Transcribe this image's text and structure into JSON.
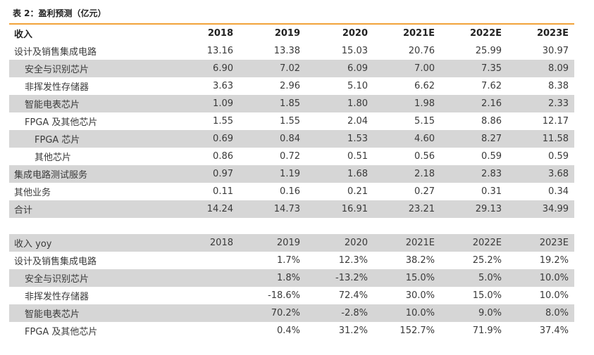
{
  "title": "表 2：盈利预测（亿元）",
  "table1": {
    "header": {
      "label": "收入",
      "years": [
        "2018",
        "2019",
        "2020",
        "2021E",
        "2022E",
        "2023E"
      ]
    },
    "rows": [
      {
        "label": "设计及销售集成电路",
        "indent": 0,
        "gray": false,
        "values": [
          "13.16",
          "13.38",
          "15.03",
          "20.76",
          "25.99",
          "30.97"
        ]
      },
      {
        "label": "安全与识别芯片",
        "indent": 1,
        "gray": true,
        "values": [
          "6.90",
          "7.02",
          "6.09",
          "7.00",
          "7.35",
          "8.09"
        ]
      },
      {
        "label": "非挥发性存储器",
        "indent": 1,
        "gray": false,
        "values": [
          "3.63",
          "2.96",
          "5.10",
          "6.62",
          "7.62",
          "8.38"
        ]
      },
      {
        "label": "智能电表芯片",
        "indent": 1,
        "gray": true,
        "values": [
          "1.09",
          "1.85",
          "1.80",
          "1.98",
          "2.16",
          "2.33"
        ]
      },
      {
        "label": "FPGA 及其他芯片",
        "indent": 1,
        "gray": false,
        "values": [
          "1.55",
          "1.55",
          "2.04",
          "5.15",
          "8.86",
          "12.17"
        ]
      },
      {
        "label": "FPGA 芯片",
        "indent": 2,
        "gray": true,
        "values": [
          "0.69",
          "0.84",
          "1.53",
          "4.60",
          "8.27",
          "11.58"
        ]
      },
      {
        "label": "其他芯片",
        "indent": 2,
        "gray": false,
        "values": [
          "0.86",
          "0.72",
          "0.51",
          "0.56",
          "0.59",
          "0.59"
        ]
      },
      {
        "label": "集成电路测试服务",
        "indent": 0,
        "gray": true,
        "values": [
          "0.97",
          "1.19",
          "1.68",
          "2.18",
          "2.83",
          "3.68"
        ]
      },
      {
        "label": "其他业务",
        "indent": 0,
        "gray": false,
        "values": [
          "0.11",
          "0.16",
          "0.21",
          "0.27",
          "0.31",
          "0.34"
        ]
      },
      {
        "label": "合计",
        "indent": 0,
        "gray": true,
        "values": [
          "14.24",
          "14.73",
          "16.91",
          "23.21",
          "29.13",
          "34.99"
        ]
      }
    ]
  },
  "table2": {
    "header": {
      "label": "收入 yoy",
      "years": [
        "2018",
        "2019",
        "2020",
        "2021E",
        "2022E",
        "2023E"
      ]
    },
    "rows": [
      {
        "label": "设计及销售集成电路",
        "indent": 0,
        "gray": false,
        "values": [
          "",
          "1.7%",
          "12.3%",
          "38.2%",
          "25.2%",
          "19.2%"
        ]
      },
      {
        "label": "安全与识别芯片",
        "indent": 1,
        "gray": true,
        "values": [
          "",
          "1.8%",
          "-13.2%",
          "15.0%",
          "5.0%",
          "10.0%"
        ]
      },
      {
        "label": "非挥发性存储器",
        "indent": 1,
        "gray": false,
        "values": [
          "",
          "-18.6%",
          "72.4%",
          "30.0%",
          "15.0%",
          "10.0%"
        ]
      },
      {
        "label": "智能电表芯片",
        "indent": 1,
        "gray": true,
        "values": [
          "",
          "70.2%",
          "-2.8%",
          "10.0%",
          "9.0%",
          "8.0%"
        ]
      },
      {
        "label": "FPGA 及其他芯片",
        "indent": 1,
        "gray": false,
        "values": [
          "",
          "0.4%",
          "31.2%",
          "152.7%",
          "71.9%",
          "37.4%"
        ]
      }
    ]
  }
}
